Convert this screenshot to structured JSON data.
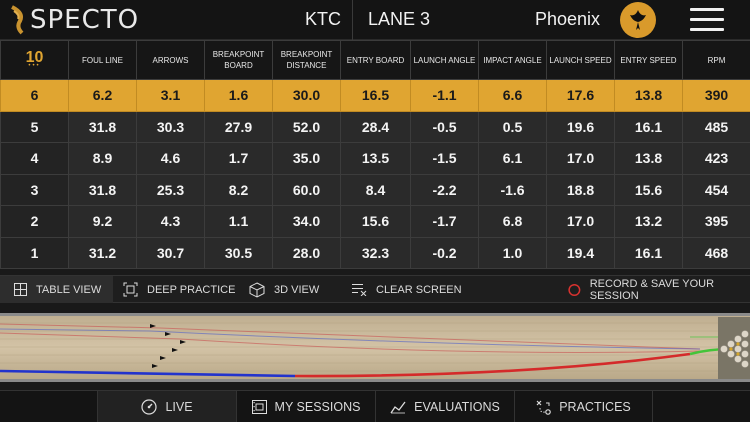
{
  "header": {
    "logo_text": "SPECTO",
    "center": "KTC",
    "lane": "LANE 3",
    "location": "Phoenix"
  },
  "table": {
    "shot_count": "10",
    "columns": [
      "FOUL LINE",
      "ARROWS",
      "BREAKPOINT BOARD",
      "BREAKPOINT DISTANCE",
      "ENTRY BOARD",
      "LAUNCH ANGLE",
      "IMPACT ANGLE",
      "LAUNCH SPEED",
      "ENTRY SPEED",
      "RPM"
    ],
    "rows": [
      {
        "shot": "6",
        "values": [
          "6.2",
          "3.1",
          "1.6",
          "30.0",
          "16.5",
          "-1.1",
          "6.6",
          "17.6",
          "13.8",
          "390"
        ],
        "active": true
      },
      {
        "shot": "5",
        "values": [
          "31.8",
          "30.3",
          "27.9",
          "52.0",
          "28.4",
          "-0.5",
          "0.5",
          "19.6",
          "16.1",
          "485"
        ],
        "active": false
      },
      {
        "shot": "4",
        "values": [
          "8.9",
          "4.6",
          "1.7",
          "35.0",
          "13.5",
          "-1.5",
          "6.1",
          "17.0",
          "13.8",
          "423"
        ],
        "active": false
      },
      {
        "shot": "3",
        "values": [
          "31.8",
          "25.3",
          "8.2",
          "60.0",
          "8.4",
          "-2.2",
          "-1.6",
          "18.8",
          "15.6",
          "454"
        ],
        "active": false
      },
      {
        "shot": "2",
        "values": [
          "9.2",
          "4.3",
          "1.1",
          "34.0",
          "15.6",
          "-1.7",
          "6.8",
          "17.0",
          "13.2",
          "395"
        ],
        "active": false
      },
      {
        "shot": "1",
        "values": [
          "31.2",
          "30.7",
          "30.5",
          "28.0",
          "32.3",
          "-0.2",
          "1.0",
          "19.4",
          "16.1",
          "468"
        ],
        "active": false
      }
    ]
  },
  "toolbar": {
    "table_view": "TABLE VIEW",
    "deep_practice": "DEEP PRACTICE",
    "view_3d": "3D  VIEW",
    "clear_screen": "CLEAR SCREEN",
    "record": "RECORD & SAVE YOUR SESSION"
  },
  "nav": {
    "live": "LIVE",
    "my_sessions": "MY SESSIONS",
    "evaluations": "EVALUATIONS",
    "practices": "PRACTICES"
  },
  "colors": {
    "accent": "#e0a531",
    "record": "#d8322f",
    "track_blue": "#2233cc",
    "track_red": "#d42a2a",
    "track_green": "#44c43a"
  }
}
